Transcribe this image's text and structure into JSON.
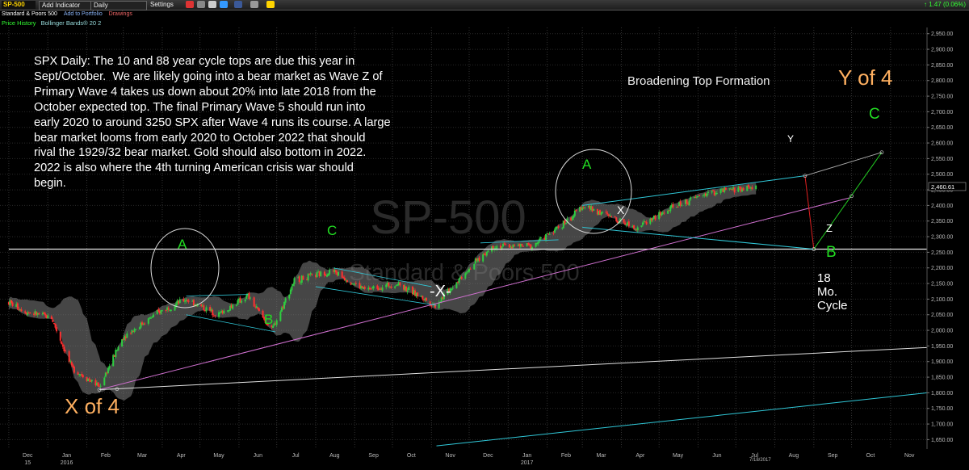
{
  "toolbar": {
    "symbol": "SP-500",
    "add_indicator": "Add Indicator",
    "interval": "Daily",
    "settings": "Settings",
    "change": "1.47 (0.06%)",
    "icons": [
      "stop-icon",
      "print-icon",
      "mail-icon",
      "twitter-icon",
      "facebook-icon",
      "camera-icon",
      "note-icon"
    ]
  },
  "subbar": {
    "name": "Standard & Poors 500",
    "add_portfolio": "Add to Portfolio",
    "drawings": "Drawings"
  },
  "legend": {
    "price_history": "Price History",
    "bollinger": "Bollinger Bands® 20 2"
  },
  "colors": {
    "background": "#000000",
    "up_candle": "#2ecc40",
    "down_candle": "#ff3030",
    "band_fill": "#808080",
    "wave_label": "#22dd22",
    "orange_label": "#ffb060",
    "trendline_cyan": "#30c8d8",
    "trendline_magenta": "#d070d0",
    "axis_text": "#bbbbbb"
  },
  "annotations": {
    "commentary": "SPX Daily: The 10 and 88 year cycle tops are due this year in\nSept/October.  We are likely going into a bear market as Wave Z of\nPrimary Wave 4 takes us down about 20% into late 2018 from the\nOctober expected top. The final Primary Wave 5 should run into\nearly 2020 to around 3250 SPX after Wave 4 runs its course. A large\nbear market looms from early 2020 to October 2022 that should\nrival the 1929/32 bear market. Gold should also bottom in 2022.\n2022 is also where the 4th turning American crisis war should\nbegin.",
    "broadening": "Broadening Top Formation",
    "y_of_4": "Y of 4",
    "x_of_4": "X of 4",
    "cycle": "18\nMo.\nCycle",
    "watermark_symbol": "SP-500",
    "watermark_name": "Standard & Poors 500",
    "wave_a1": "A",
    "wave_b1": "B",
    "wave_c1": "C",
    "wave_x_main": "-X-",
    "wave_a2": "A",
    "wave_x2": "X",
    "wave_y": "Y",
    "wave_z": "Z",
    "wave_b2": "B",
    "wave_c2": "C",
    "last_date": "7/18/2017"
  },
  "chart_data": {
    "type": "candlestick",
    "title": "",
    "symbol": "SP-500",
    "interval": "Daily",
    "indicator": "Bollinger Bands® 20 2",
    "last_price_label": "2,460.61",
    "ylim": [
      1620,
      2970
    ],
    "y_ticks": [
      "2,950.00",
      "2,900.00",
      "2,850.00",
      "2,800.00",
      "2,750.00",
      "2,700.00",
      "2,650.00",
      "2,600.00",
      "2,550.00",
      "2,500.00",
      "2,450.00",
      "2,400.00",
      "2,350.00",
      "2,300.00",
      "2,250.00",
      "2,200.00",
      "2,150.00",
      "2,100.00",
      "2,050.00",
      "2,000.00",
      "1,950.00",
      "1,900.00",
      "1,850.00",
      "1,800.00",
      "1,750.00",
      "1,700.00",
      "1,650.00"
    ],
    "x_ticks": [
      "Dec\n15",
      "Jan\n2016",
      "Feb",
      "Mar",
      "Apr",
      "May",
      "Jun",
      "Jul",
      "Aug",
      "Sep",
      "Oct",
      "Nov",
      "Dec",
      "Jan\n2017",
      "Feb",
      "Mar",
      "Apr",
      "May",
      "Jun",
      "Jul",
      "Aug",
      "Sep",
      "Oct",
      "Nov"
    ],
    "close_path": [
      {
        "date": "2015-12-01",
        "close": 2090
      },
      {
        "date": "2015-12-15",
        "close": 2060
      },
      {
        "date": "2016-01-04",
        "close": 2040
      },
      {
        "date": "2016-01-20",
        "close": 1880
      },
      {
        "date": "2016-02-11",
        "close": 1820
      },
      {
        "date": "2016-03-01",
        "close": 1980
      },
      {
        "date": "2016-03-30",
        "close": 2060
      },
      {
        "date": "2016-04-20",
        "close": 2100
      },
      {
        "date": "2016-05-15",
        "close": 2050
      },
      {
        "date": "2016-06-08",
        "close": 2110
      },
      {
        "date": "2016-06-27",
        "close": 2000
      },
      {
        "date": "2016-07-15",
        "close": 2160
      },
      {
        "date": "2016-08-15",
        "close": 2190
      },
      {
        "date": "2016-09-09",
        "close": 2130
      },
      {
        "date": "2016-10-05",
        "close": 2150
      },
      {
        "date": "2016-11-04",
        "close": 2080
      },
      {
        "date": "2016-12-01",
        "close": 2200
      },
      {
        "date": "2016-12-20",
        "close": 2270
      },
      {
        "date": "2017-01-20",
        "close": 2270
      },
      {
        "date": "2017-02-20",
        "close": 2360
      },
      {
        "date": "2017-03-01",
        "close": 2400
      },
      {
        "date": "2017-04-13",
        "close": 2330
      },
      {
        "date": "2017-05-15",
        "close": 2400
      },
      {
        "date": "2017-06-09",
        "close": 2440
      },
      {
        "date": "2017-07-18",
        "close": 2460
      }
    ],
    "trendlines": [
      {
        "name": "horizontal",
        "color": "white",
        "from": [
          "2015-12-01",
          2260
        ],
        "to": [
          "2017-11-30",
          2260
        ]
      },
      {
        "name": "magenta",
        "from": [
          "2016-02-11",
          1810
        ],
        "to": [
          "2017-09-30",
          2425
        ]
      },
      {
        "name": "white-long",
        "from": [
          "2016-02-11",
          1810
        ],
        "to": [
          "2017-11-30",
          1945
        ]
      },
      {
        "name": "cyan-long",
        "from": [
          "2016-11-05",
          1630
        ],
        "to": [
          "2017-11-30",
          1800
        ]
      },
      {
        "name": "upper-broadening",
        "from": [
          "2017-03-01",
          2400
        ],
        "to": [
          "2017-08-25",
          2495
        ]
      },
      {
        "name": "lower-broadening",
        "from": [
          "2017-03-01",
          2330
        ],
        "to": [
          "2017-09-01",
          2260
        ]
      },
      {
        "name": "red",
        "from": [
          "2017-08-25",
          2495
        ],
        "to": [
          "2017-09-01",
          2260
        ]
      },
      {
        "name": "green",
        "from": [
          "2017-09-01",
          2260
        ],
        "to": [
          "2017-10-25",
          2570
        ]
      },
      {
        "name": "gray",
        "from": [
          "2017-08-25",
          2495
        ],
        "to": [
          "2017-10-25",
          2570
        ]
      }
    ]
  }
}
